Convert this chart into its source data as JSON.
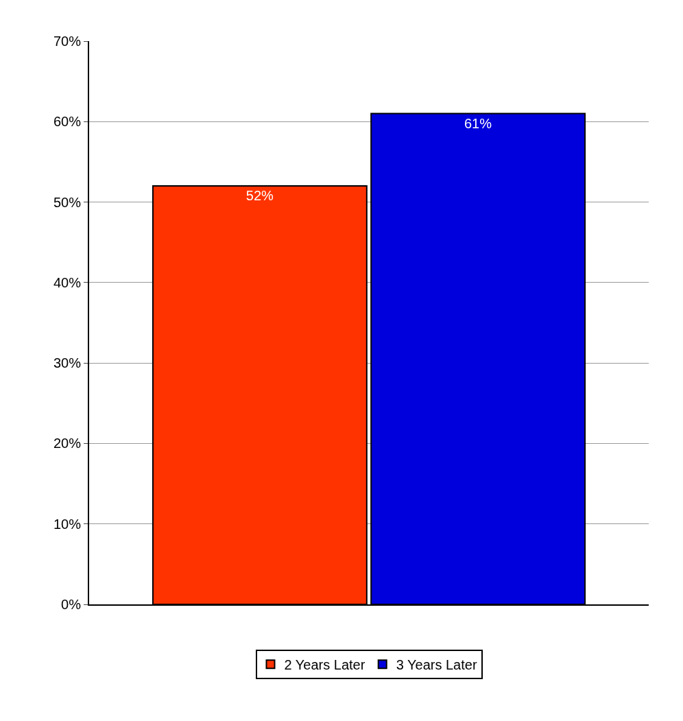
{
  "chart_data": {
    "type": "bar",
    "categories": [
      null
    ],
    "series": [
      {
        "name": "2 Years Later",
        "color": "#ff3300",
        "values": [
          52
        ],
        "value_labels": [
          "52%"
        ]
      },
      {
        "name": "3 Years Later",
        "color": "#0000dd",
        "values": [
          61
        ],
        "value_labels": [
          "61%"
        ]
      }
    ],
    "ylim": [
      0,
      70
    ],
    "yticks": [
      {
        "value": 0,
        "label": "0%"
      },
      {
        "value": 10,
        "label": "10%"
      },
      {
        "value": 20,
        "label": "20%"
      },
      {
        "value": 30,
        "label": "30%"
      },
      {
        "value": 40,
        "label": "40%"
      },
      {
        "value": 50,
        "label": "50%"
      },
      {
        "value": 60,
        "label": "60%"
      },
      {
        "value": 70,
        "label": "70%"
      }
    ],
    "grid": "y",
    "legend": "bottom",
    "tick_labels": "y"
  }
}
